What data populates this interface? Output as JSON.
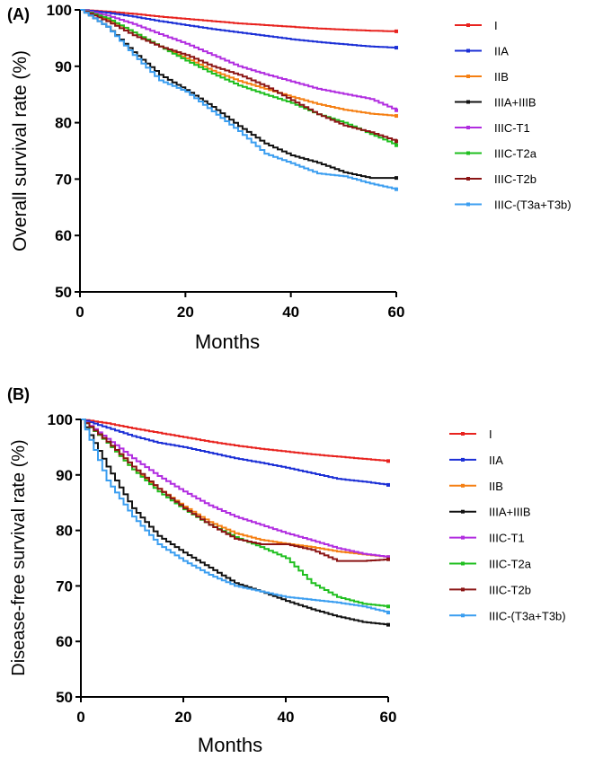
{
  "colors": {
    "I": "#e8231f",
    "IIA": "#1b2fd6",
    "IIB": "#f57f12",
    "IIIA+IIIB": "#111111",
    "IIIC-T1": "#b12de0",
    "IIIC-T2a": "#1fbf1f",
    "IIIC-T2b": "#8b1515",
    "IIIC-(T3a+T3b)": "#3b9ef0"
  },
  "chart_data": [
    {
      "type": "line",
      "panel_label": "(A)",
      "xlabel": "Months",
      "ylabel": "Overall survival rate (%)",
      "xlim": [
        0,
        60
      ],
      "ylim": [
        50,
        100
      ],
      "xticks": [
        "0",
        "20",
        "40",
        "60"
      ],
      "yticks": [
        "50",
        "60",
        "70",
        "80",
        "90",
        "100"
      ],
      "legend_position": "right",
      "series": [
        {
          "name": "I",
          "x": [
            0,
            5,
            10,
            15,
            20,
            25,
            30,
            35,
            40,
            45,
            50,
            55,
            60
          ],
          "values": [
            100,
            99.7,
            99.3,
            98.8,
            98.4,
            98.0,
            97.6,
            97.3,
            97.0,
            96.7,
            96.5,
            96.3,
            96.2
          ]
        },
        {
          "name": "IIA",
          "x": [
            0,
            5,
            10,
            15,
            20,
            25,
            30,
            35,
            40,
            45,
            50,
            55,
            60
          ],
          "values": [
            100,
            99.5,
            98.8,
            98.0,
            97.3,
            96.6,
            96.0,
            95.4,
            94.8,
            94.3,
            93.9,
            93.5,
            93.3
          ]
        },
        {
          "name": "IIB",
          "x": [
            0,
            5,
            10,
            15,
            20,
            25,
            30,
            35,
            40,
            45,
            50,
            55,
            60
          ],
          "values": [
            100,
            98.3,
            96.0,
            93.5,
            91.4,
            89.2,
            87.4,
            86.0,
            84.6,
            83.3,
            82.3,
            81.6,
            81.2
          ]
        },
        {
          "name": "IIIA+IIIB",
          "x": [
            0,
            5,
            10,
            15,
            20,
            25,
            30,
            35,
            40,
            45,
            50,
            55,
            60
          ],
          "values": [
            100,
            97.0,
            92.5,
            88.5,
            85.8,
            82.8,
            79.4,
            76.3,
            74.2,
            72.9,
            71.2,
            70.2,
            70.2
          ]
        },
        {
          "name": "IIIC-T1",
          "x": [
            0,
            5,
            10,
            15,
            20,
            25,
            30,
            35,
            40,
            45,
            50,
            55,
            60
          ],
          "values": [
            100,
            99.0,
            97.5,
            95.7,
            94.0,
            92.0,
            90.0,
            88.6,
            87.3,
            86.0,
            85.1,
            84.2,
            82.2
          ]
        },
        {
          "name": "IIIC-T2a",
          "x": [
            0,
            5,
            10,
            15,
            20,
            25,
            30,
            35,
            40,
            45,
            50,
            55,
            60
          ],
          "values": [
            100,
            98.5,
            96.0,
            93.5,
            91.0,
            88.7,
            86.6,
            85.0,
            83.5,
            81.5,
            80.0,
            78.0,
            76.0
          ]
        },
        {
          "name": "IIIC-T2b",
          "x": [
            0,
            5,
            10,
            15,
            20,
            25,
            30,
            35,
            40,
            45,
            50,
            55,
            60
          ],
          "values": [
            100,
            98.0,
            95.5,
            93.5,
            92.0,
            90.0,
            88.5,
            86.5,
            84.0,
            81.5,
            79.5,
            78.3,
            76.7
          ]
        },
        {
          "name": "IIIC-(T3a+T3b)",
          "x": [
            0,
            5,
            10,
            15,
            20,
            25,
            30,
            35,
            40,
            45,
            50,
            55,
            60
          ],
          "values": [
            100,
            97.0,
            92.0,
            87.5,
            85.5,
            82.0,
            78.5,
            74.5,
            72.8,
            71.0,
            70.5,
            69.2,
            68.2
          ]
        }
      ]
    },
    {
      "type": "line",
      "panel_label": "(B)",
      "xlabel": "Months",
      "ylabel": "Disease-free survival rate (%)",
      "xlim": [
        0,
        60
      ],
      "ylim": [
        50,
        100
      ],
      "xticks": [
        "0",
        "20",
        "40",
        "60"
      ],
      "yticks": [
        "50",
        "60",
        "70",
        "80",
        "90",
        "100"
      ],
      "legend_position": "right",
      "series": [
        {
          "name": "I",
          "x": [
            0,
            5,
            10,
            15,
            20,
            25,
            30,
            35,
            40,
            45,
            50,
            55,
            60
          ],
          "values": [
            100,
            99.3,
            98.4,
            97.6,
            96.8,
            96.0,
            95.3,
            94.7,
            94.2,
            93.7,
            93.3,
            92.9,
            92.5
          ]
        },
        {
          "name": "IIA",
          "x": [
            0,
            5,
            10,
            15,
            20,
            25,
            30,
            35,
            40,
            45,
            50,
            55,
            60
          ],
          "values": [
            100,
            98.5,
            97.0,
            95.8,
            95.0,
            94.0,
            93.0,
            92.2,
            91.3,
            90.3,
            89.3,
            88.8,
            88.2
          ]
        },
        {
          "name": "IIB",
          "x": [
            0,
            5,
            10,
            15,
            20,
            25,
            30,
            35,
            40,
            45,
            50,
            55,
            60
          ],
          "values": [
            100,
            95.8,
            91.0,
            87.5,
            84.3,
            81.5,
            79.5,
            78.3,
            77.6,
            77.0,
            76.2,
            75.7,
            75.2
          ]
        },
        {
          "name": "IIIA+IIIB",
          "x": [
            0,
            5,
            10,
            15,
            20,
            25,
            30,
            35,
            40,
            45,
            50,
            55,
            60
          ],
          "values": [
            100,
            91.5,
            84.0,
            79.0,
            76.0,
            73.3,
            70.5,
            69.0,
            67.3,
            65.8,
            64.5,
            63.5,
            63.0
          ]
        },
        {
          "name": "IIIC-T1",
          "x": [
            0,
            5,
            10,
            15,
            20,
            25,
            30,
            35,
            40,
            45,
            50,
            55,
            60
          ],
          "values": [
            100,
            96.5,
            93.0,
            89.8,
            87.0,
            84.5,
            82.5,
            81.0,
            79.5,
            78.2,
            76.8,
            75.8,
            75.2
          ]
        },
        {
          "name": "IIIC-T2a",
          "x": [
            0,
            5,
            10,
            15,
            20,
            25,
            30,
            35,
            40,
            45,
            50,
            55,
            60
          ],
          "values": [
            100,
            95.8,
            91.0,
            87.0,
            83.8,
            81.0,
            78.8,
            77.0,
            75.0,
            70.5,
            68.0,
            66.8,
            66.3
          ]
        },
        {
          "name": "IIIC-T2b",
          "x": [
            0,
            5,
            10,
            15,
            20,
            25,
            30,
            35,
            40,
            45,
            50,
            55,
            60
          ],
          "values": [
            100,
            96.0,
            91.5,
            87.5,
            84.0,
            81.0,
            78.5,
            77.5,
            77.5,
            76.5,
            74.5,
            74.5,
            74.8
          ]
        },
        {
          "name": "IIIC-(T3a+T3b)",
          "x": [
            0,
            5,
            10,
            15,
            20,
            25,
            30,
            35,
            40,
            45,
            50,
            55,
            60
          ],
          "values": [
            100,
            89.0,
            82.5,
            77.5,
            74.5,
            72.0,
            70.0,
            69.0,
            68.0,
            67.5,
            67.0,
            66.3,
            65.2
          ]
        }
      ]
    }
  ]
}
